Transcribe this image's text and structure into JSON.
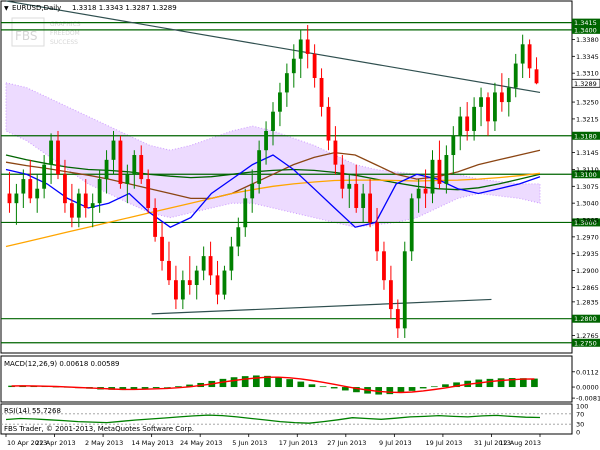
{
  "header": {
    "symbol": "EURUSD,Daily",
    "ohlc": "1.3318 1.3343 1.3287 1.3289",
    "watermark_lines": [
      "FBS",
      "GRAPHICS",
      "FREEDOM",
      "SUCCESS"
    ]
  },
  "footer": {
    "copyright": "FBS Trader, © 2001-2013, MetaQuotes Software Corp."
  },
  "colors": {
    "background": "#ffffff",
    "bull_candle": "#008000",
    "bear_candle": "#ff0000",
    "level_line": "#006400",
    "trendline": "#2f4f4f",
    "ichimoku_cloud": "#cc99ff",
    "macd_hist": "#008000",
    "macd_signal": "#ff0000",
    "rsi_line": "#008000",
    "price_badge": "#ffffff",
    "level_badge": "#006400"
  },
  "chart_data": [
    {
      "type": "candlestick",
      "title": "EURUSD,Daily",
      "current_price": "1.3289",
      "ylim": [
        1.2735,
        1.3435
      ],
      "y_ticks": [
        "1.3415",
        "1.3400",
        "1.3380",
        "1.3345",
        "1.3310",
        "1.3289",
        "1.3250",
        "1.3215",
        "1.3180",
        "1.3145",
        "1.3110",
        "1.3100",
        "1.3075",
        "1.3040",
        "1.3005",
        "1.3000",
        "1.2970",
        "1.2935",
        "1.2900",
        "1.2865",
        "1.2835",
        "1.2800",
        "1.2765",
        "1.2750"
      ],
      "x_ticks": [
        "10 Apr 2013",
        "22 Apr 2013",
        "2 May 2013",
        "14 May 2013",
        "24 May 2013",
        "5 Jun 2013",
        "17 Jun 2013",
        "27 Jun 2013",
        "9 Jul 2013",
        "19 Jul 2013",
        "31 Jul 2013",
        "12 Aug 2013"
      ],
      "horizontal_levels": [
        "1.3415",
        "1.3400",
        "1.3180",
        "1.3100",
        "1.3000",
        "1.2800",
        "1.2750"
      ],
      "ohlc": [
        [
          1.306,
          1.3105,
          1.302,
          1.304
        ],
        [
          1.304,
          1.308,
          1.2995,
          1.306
        ],
        [
          1.306,
          1.311,
          1.303,
          1.309
        ],
        [
          1.309,
          1.313,
          1.304,
          1.305
        ],
        [
          1.305,
          1.31,
          1.302,
          1.307
        ],
        [
          1.307,
          1.314,
          1.305,
          1.312
        ],
        [
          1.312,
          1.3185,
          1.308,
          1.317
        ],
        [
          1.317,
          1.319,
          1.309,
          1.31
        ],
        [
          1.31,
          1.313,
          1.302,
          1.304
        ],
        [
          1.304,
          1.308,
          1.299,
          1.301
        ],
        [
          1.301,
          1.307,
          1.299,
          1.306
        ],
        [
          1.306,
          1.309,
          1.301,
          1.303
        ],
        [
          1.303,
          1.306,
          1.299,
          1.304
        ],
        [
          1.304,
          1.311,
          1.302,
          1.309
        ],
        [
          1.309,
          1.315,
          1.306,
          1.313
        ],
        [
          1.313,
          1.319,
          1.31,
          1.317
        ],
        [
          1.317,
          1.318,
          1.307,
          1.308
        ],
        [
          1.308,
          1.312,
          1.304,
          1.31
        ],
        [
          1.31,
          1.315,
          1.307,
          1.314
        ],
        [
          1.314,
          1.316,
          1.308,
          1.309
        ],
        [
          1.309,
          1.311,
          1.302,
          1.303
        ],
        [
          1.303,
          1.305,
          1.296,
          1.297
        ],
        [
          1.297,
          1.3,
          1.29,
          1.292
        ],
        [
          1.292,
          1.296,
          1.287,
          1.288
        ],
        [
          1.288,
          1.291,
          1.282,
          1.284
        ],
        [
          1.284,
          1.29,
          1.282,
          1.288
        ],
        [
          1.288,
          1.293,
          1.285,
          1.287
        ],
        [
          1.287,
          1.291,
          1.284,
          1.29
        ],
        [
          1.29,
          1.295,
          1.288,
          1.293
        ],
        [
          1.293,
          1.296,
          1.287,
          1.289
        ],
        [
          1.289,
          1.292,
          1.283,
          1.285
        ],
        [
          1.285,
          1.291,
          1.284,
          1.29
        ],
        [
          1.29,
          1.297,
          1.288,
          1.295
        ],
        [
          1.295,
          1.301,
          1.293,
          1.299
        ],
        [
          1.299,
          1.307,
          1.297,
          1.305
        ],
        [
          1.305,
          1.311,
          1.302,
          1.308
        ],
        [
          1.308,
          1.317,
          1.306,
          1.315
        ],
        [
          1.315,
          1.321,
          1.312,
          1.319
        ],
        [
          1.319,
          1.325,
          1.316,
          1.323
        ],
        [
          1.323,
          1.329,
          1.32,
          1.327
        ],
        [
          1.327,
          1.333,
          1.324,
          1.331
        ],
        [
          1.331,
          1.337,
          1.328,
          1.334
        ],
        [
          1.334,
          1.34,
          1.33,
          1.338
        ],
        [
          1.338,
          1.341,
          1.332,
          1.335
        ],
        [
          1.335,
          1.337,
          1.328,
          1.33
        ],
        [
          1.33,
          1.332,
          1.322,
          1.324
        ],
        [
          1.324,
          1.326,
          1.315,
          1.317
        ],
        [
          1.317,
          1.32,
          1.31,
          1.312
        ],
        [
          1.312,
          1.314,
          1.305,
          1.307
        ],
        [
          1.307,
          1.31,
          1.303,
          1.308
        ],
        [
          1.308,
          1.312,
          1.302,
          1.303
        ],
        [
          1.303,
          1.308,
          1.3,
          1.306
        ],
        [
          1.306,
          1.309,
          1.299,
          1.3
        ],
        [
          1.3,
          1.303,
          1.292,
          1.294
        ],
        [
          1.294,
          1.296,
          1.286,
          1.288
        ],
        [
          1.288,
          1.291,
          1.28,
          1.282
        ],
        [
          1.282,
          1.284,
          1.276,
          1.278
        ],
        [
          1.278,
          1.296,
          1.276,
          1.294
        ],
        [
          1.294,
          1.306,
          1.292,
          1.305
        ],
        [
          1.305,
          1.309,
          1.302,
          1.307
        ],
        [
          1.307,
          1.311,
          1.303,
          1.306
        ],
        [
          1.306,
          1.315,
          1.304,
          1.313
        ],
        [
          1.313,
          1.317,
          1.307,
          1.308
        ],
        [
          1.308,
          1.316,
          1.306,
          1.314
        ],
        [
          1.314,
          1.32,
          1.31,
          1.318
        ],
        [
          1.318,
          1.324,
          1.315,
          1.322
        ],
        [
          1.322,
          1.325,
          1.317,
          1.319
        ],
        [
          1.319,
          1.326,
          1.317,
          1.324
        ],
        [
          1.324,
          1.328,
          1.32,
          1.326
        ],
        [
          1.326,
          1.327,
          1.318,
          1.321
        ],
        [
          1.321,
          1.329,
          1.319,
          1.327
        ],
        [
          1.327,
          1.331,
          1.323,
          1.325
        ],
        [
          1.325,
          1.33,
          1.322,
          1.328
        ],
        [
          1.328,
          1.335,
          1.326,
          1.333
        ],
        [
          1.333,
          1.339,
          1.33,
          1.337
        ],
        [
          1.337,
          1.338,
          1.33,
          1.332
        ],
        [
          1.3318,
          1.3343,
          1.3287,
          1.3289
        ]
      ],
      "moving_averages": [
        {
          "color": "#8b4513",
          "values": [
            1.3125,
            1.3118,
            1.3112,
            1.3105,
            1.3098,
            1.309,
            1.308,
            1.307,
            1.306,
            1.305,
            1.305,
            1.306,
            1.308,
            1.31,
            1.312,
            1.3135,
            1.3145,
            1.314,
            1.312,
            1.31,
            1.309,
            1.3095,
            1.3105,
            1.312,
            1.313,
            1.314,
            1.315
          ]
        },
        {
          "color": "#006400",
          "values": [
            1.314,
            1.313,
            1.3122,
            1.3115,
            1.311,
            1.3108,
            1.3105,
            1.31,
            1.3096,
            1.3093,
            1.3095,
            1.31,
            1.3105,
            1.3108,
            1.311,
            1.3108,
            1.3104,
            1.3098,
            1.309,
            1.3082,
            1.3075,
            1.307,
            1.3068,
            1.3072,
            1.308,
            1.309,
            1.31
          ]
        },
        {
          "color": "#ffa500",
          "values": [
            1.295,
            1.296,
            1.297,
            1.298,
            1.299,
            1.3,
            1.301,
            1.302,
            1.303,
            1.304,
            1.305,
            1.306,
            1.3068,
            1.3075,
            1.308,
            1.3084,
            1.3087,
            1.3088,
            1.3088,
            1.3087,
            1.3086,
            1.3087,
            1.3088,
            1.309,
            1.3093,
            1.3097,
            1.3102
          ]
        },
        {
          "color": "#0000ff",
          "values": [
            1.311,
            1.31,
            1.308,
            1.305,
            1.303,
            1.304,
            1.306,
            1.302,
            1.299,
            1.301,
            1.306,
            1.309,
            1.312,
            1.314,
            1.311,
            1.307,
            1.303,
            1.299,
            1.3,
            1.308,
            1.31,
            1.309,
            1.307,
            1.306,
            1.307,
            1.308,
            1.3095
          ]
        }
      ],
      "ichimoku_cloud": {
        "upper": [
          1.329,
          1.328,
          1.326,
          1.324,
          1.322,
          1.32,
          1.318,
          1.316,
          1.315,
          1.316,
          1.3175,
          1.319,
          1.32,
          1.319,
          1.3175,
          1.316,
          1.314,
          1.312,
          1.311,
          1.3105,
          1.31,
          1.31,
          1.31,
          1.309,
          1.3085,
          1.308,
          1.308
        ],
        "lower": [
          1.319,
          1.317,
          1.314,
          1.311,
          1.308,
          1.306,
          1.304,
          1.302,
          1.301,
          1.302,
          1.303,
          1.304,
          1.304,
          1.303,
          1.302,
          1.301,
          1.3,
          1.299,
          1.2995,
          1.3,
          1.301,
          1.303,
          1.305,
          1.306,
          1.3055,
          1.305,
          1.304
        ]
      },
      "trendlines": [
        {
          "from": [
            "10 Apr 2013",
            1.346
          ],
          "to": [
            "12 Aug 2013",
            1.327
          ]
        },
        {
          "from": [
            "14 May 2013",
            1.281
          ],
          "to": [
            "31 Jul 2013",
            1.284
          ]
        }
      ]
    },
    {
      "type": "bar",
      "title": "MACD(12,26,9) 0.00618 0.00589",
      "ylim": [
        -0.0095,
        0.0125
      ],
      "y_ticks": [
        "0.0112",
        "0.0000",
        "-0.0081"
      ],
      "values": [
        0.001,
        0.0012,
        0.0008,
        0.0005,
        0.0002,
        -0.0003,
        -0.0008,
        -0.0012,
        -0.0018,
        -0.002,
        -0.0022,
        -0.0018,
        -0.0012,
        -0.0008,
        -0.0003,
        0.0006,
        0.0018,
        0.003,
        0.0045,
        0.006,
        0.0072,
        0.008,
        0.0085,
        0.0082,
        0.0072,
        0.0058,
        0.004,
        0.002,
        0.0005,
        -0.001,
        -0.0025,
        -0.0038,
        -0.0048,
        -0.0055,
        -0.0052,
        -0.0042,
        -0.0028,
        -0.001,
        0.0005,
        0.002,
        0.0034,
        0.0046,
        0.0055,
        0.006,
        0.0064,
        0.0066,
        0.0065,
        0.0062
      ],
      "signal": [
        0.0008,
        0.0009,
        0.0008,
        0.0006,
        0.0004,
        0.0001,
        -0.0003,
        -0.0006,
        -0.001,
        -0.0014,
        -0.0017,
        -0.0017,
        -0.0016,
        -0.0013,
        -0.001,
        -0.0005,
        0.0002,
        0.0012,
        0.0023,
        0.0036,
        0.0048,
        0.0058,
        0.0066,
        0.0072,
        0.0072,
        0.0068,
        0.006,
        0.0048,
        0.0035,
        0.002,
        0.0005,
        -0.001,
        -0.0022,
        -0.0032,
        -0.0038,
        -0.004,
        -0.0036,
        -0.0028,
        -0.0018,
        -0.0006,
        0.0008,
        0.002,
        0.003,
        0.004,
        0.0048,
        0.0054,
        0.0058,
        0.0059
      ]
    },
    {
      "type": "line",
      "title": "RSI(14) 55.7268",
      "ylim": [
        0,
        100
      ],
      "y_ticks": [
        "100",
        "70",
        "30",
        "0"
      ],
      "values": [
        48,
        52,
        50,
        47,
        44,
        40,
        38,
        36,
        41,
        46,
        50,
        54,
        58,
        62,
        65,
        63,
        58,
        52,
        46,
        40,
        36,
        34,
        40,
        47,
        55,
        52,
        49,
        53,
        58,
        60,
        63,
        60,
        58,
        62,
        64,
        60,
        57,
        55.7
      ]
    }
  ]
}
